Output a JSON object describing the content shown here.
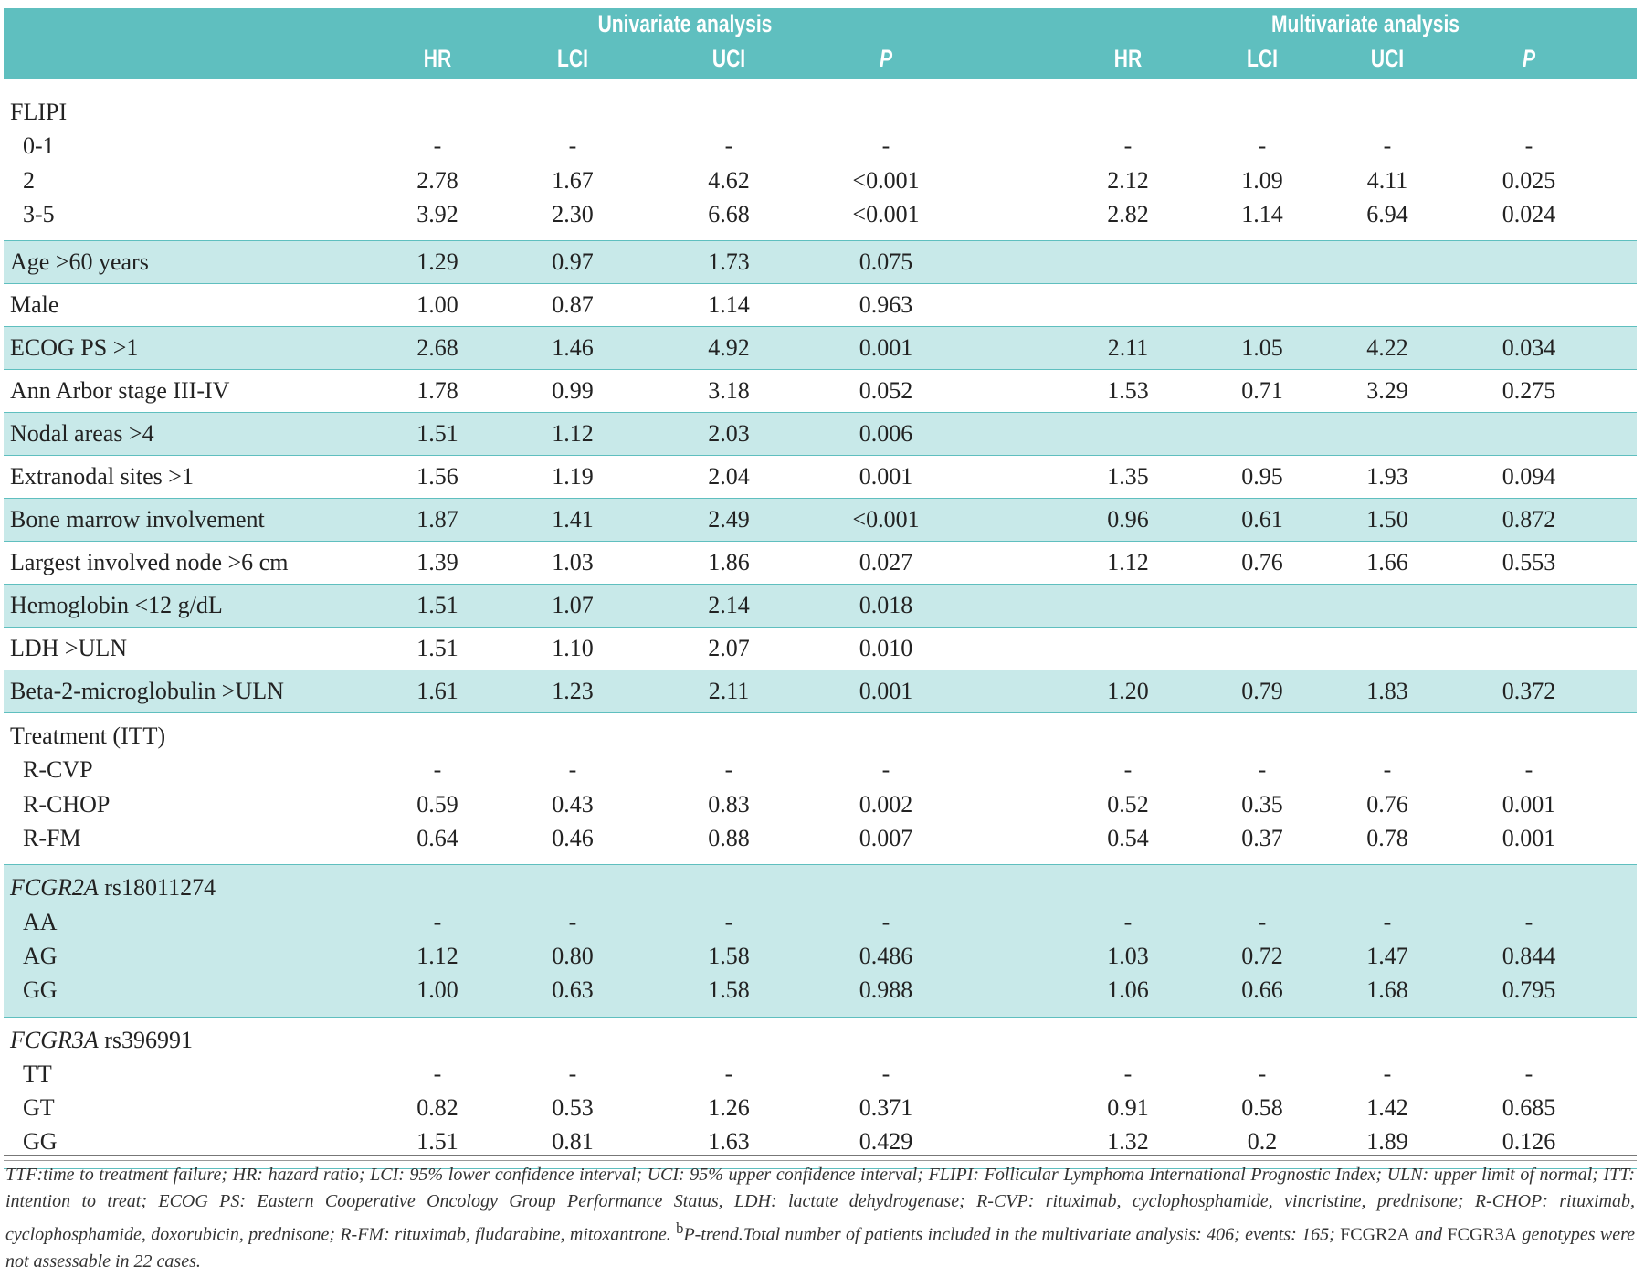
{
  "header": {
    "univariate_title": "Univariate analysis",
    "multivariate_title": "Multivariate analysis",
    "columns": [
      "HR",
      "LCI",
      "UCI",
      "P",
      "HR",
      "LCI",
      "UCI",
      "P"
    ]
  },
  "colors": {
    "header_bg": "#5fbfbf",
    "shaded_row": "#c8e9e9",
    "rule": "#5fbfbf"
  },
  "groups": [
    {
      "shaded": false,
      "label": "FLIPI",
      "rows": [
        {
          "label": "0-1",
          "values": [
            "-",
            "-",
            "-",
            "-",
            "-",
            "-",
            "-",
            "-"
          ]
        },
        {
          "label": "2",
          "values": [
            "2.78",
            "1.67",
            "4.62",
            "<0.001",
            "2.12",
            "1.09",
            "4.11",
            "0.025"
          ]
        },
        {
          "label": "3-5",
          "values": [
            "3.92",
            "2.30",
            "6.68",
            "<0.001",
            "2.82",
            "1.14",
            "6.94",
            "0.024"
          ]
        }
      ]
    },
    {
      "shaded": true,
      "single": {
        "label": "Age >60 years",
        "values": [
          "1.29",
          "0.97",
          "1.73",
          "0.075",
          "",
          "",
          "",
          ""
        ]
      }
    },
    {
      "shaded": false,
      "single": {
        "label": "Male",
        "values": [
          "1.00",
          "0.87",
          "1.14",
          "0.963",
          "",
          "",
          "",
          ""
        ]
      }
    },
    {
      "shaded": true,
      "single": {
        "label": "ECOG PS >1",
        "values": [
          "2.68",
          "1.46",
          "4.92",
          "0.001",
          "2.11",
          "1.05",
          "4.22",
          "0.034"
        ]
      }
    },
    {
      "shaded": false,
      "single": {
        "label": "Ann Arbor stage III-IV",
        "values": [
          "1.78",
          "0.99",
          "3.18",
          "0.052",
          "1.53",
          "0.71",
          "3.29",
          "0.275"
        ]
      }
    },
    {
      "shaded": true,
      "single": {
        "label": "Nodal areas >4",
        "values": [
          "1.51",
          "1.12",
          "2.03",
          "0.006",
          "",
          "",
          "",
          ""
        ]
      }
    },
    {
      "shaded": false,
      "single": {
        "label": "Extranodal sites >1",
        "values": [
          "1.56",
          "1.19",
          "2.04",
          "0.001",
          "1.35",
          "0.95",
          "1.93",
          "0.094"
        ]
      }
    },
    {
      "shaded": true,
      "single": {
        "label": "Bone marrow involvement",
        "values": [
          "1.87",
          "1.41",
          "2.49",
          "<0.001",
          "0.96",
          "0.61",
          "1.50",
          "0.872"
        ]
      }
    },
    {
      "shaded": false,
      "single": {
        "label": "Largest involved node >6 cm",
        "values": [
          "1.39",
          "1.03",
          "1.86",
          "0.027",
          "1.12",
          "0.76",
          "1.66",
          "0.553"
        ]
      }
    },
    {
      "shaded": true,
      "single": {
        "label": "Hemoglobin <12 g/dL",
        "values": [
          "1.51",
          "1.07",
          "2.14",
          "0.018",
          "",
          "",
          "",
          ""
        ]
      }
    },
    {
      "shaded": false,
      "single": {
        "label": "LDH >ULN",
        "values": [
          "1.51",
          "1.10",
          "2.07",
          "0.010",
          "",
          "",
          "",
          ""
        ]
      }
    },
    {
      "shaded": true,
      "single": {
        "label": "Beta-2-microglobulin >ULN",
        "values": [
          "1.61",
          "1.23",
          "2.11",
          "0.001",
          "1.20",
          "0.79",
          "1.83",
          "0.372"
        ]
      }
    },
    {
      "shaded": false,
      "label": "Treatment (ITT)",
      "rows": [
        {
          "label": "R-CVP",
          "values": [
            "-",
            "-",
            "-",
            "-",
            "-",
            "-",
            "-",
            "-"
          ]
        },
        {
          "label": "R-CHOP",
          "values": [
            "0.59",
            "0.43",
            "0.83",
            "0.002",
            "0.52",
            "0.35",
            "0.76",
            "0.001"
          ]
        },
        {
          "label": "R-FM",
          "values": [
            "0.64",
            "0.46",
            "0.88",
            "0.007",
            "0.54",
            "0.37",
            "0.78",
            "0.001"
          ]
        }
      ]
    },
    {
      "shaded": true,
      "label_italic": "FCGR2A",
      "label": " rs18011274",
      "rows": [
        {
          "label": "AA",
          "values": [
            "-",
            "-",
            "-",
            "-",
            "-",
            "-",
            "-",
            "-"
          ]
        },
        {
          "label": "AG",
          "values": [
            "1.12",
            "0.80",
            "1.58",
            "0.486",
            "1.03",
            "0.72",
            "1.47",
            "0.844"
          ]
        },
        {
          "label": "GG",
          "values": [
            "1.00",
            "0.63",
            "1.58",
            "0.988",
            "1.06",
            "0.66",
            "1.68",
            "0.795"
          ]
        }
      ]
    },
    {
      "shaded": false,
      "label_italic": "FCGR3A",
      "label": " rs396991",
      "rows": [
        {
          "label": "TT",
          "values": [
            "-",
            "-",
            "-",
            "-",
            "-",
            "-",
            "-",
            "-"
          ]
        },
        {
          "label": "GT",
          "values": [
            "0.82",
            "0.53",
            "1.26",
            "0.371",
            "0.91",
            "0.58",
            "1.42",
            "0.685"
          ]
        },
        {
          "label": "GG",
          "values": [
            "1.51",
            "0.81",
            "1.63",
            "0.429",
            "1.32",
            "0.2",
            "1.89",
            "0.126"
          ]
        }
      ]
    }
  ],
  "footnote": {
    "text_1": "TTF:time to treatment failure; HR: hazard ratio; LCI: 95% lower confidence interval; UCI: 95% upper confidence interval; FLIPI: Follicular Lymphoma International Prognostic Index; ULN: upper limit of normal; ITT: intention to treat; ECOG PS: Eastern Cooperative Oncology Group Performance Status, LDH: lactate dehydrogenase; R-CVP: rituximab, cyclophosphamide, vincristine, prednisone; R-CHOP: rituximab, cyclophosphamide, doxorubicin, prednisone; R-FM: rituximab, fludarabine, mitoxantrone. ",
    "sup": "b",
    "text_2": "P-trend.Total number of patients included in the multivariate analysis: 406; events: 165; ",
    "gene_1": "FCGR2A",
    "text_3": " and ",
    "gene_2": "FCGR3A",
    "text_4": " genotypes were not assessable in 22 cases."
  }
}
